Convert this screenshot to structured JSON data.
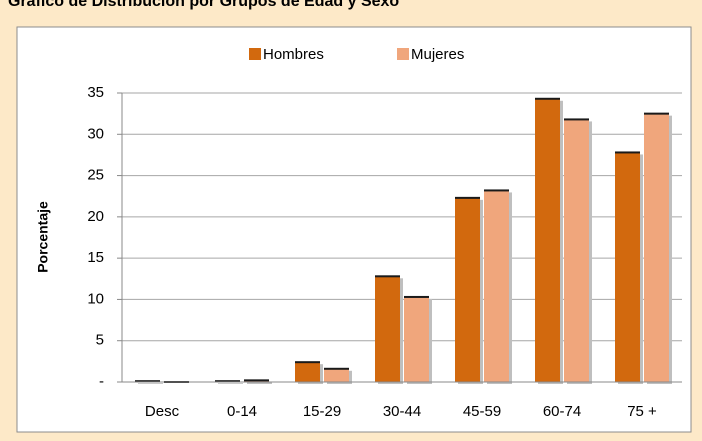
{
  "chart_data": {
    "type": "bar",
    "title": "Gráfico de Distribución por Grupos de Edad y Sexo",
    "y_label": "Porcentaje",
    "categories": [
      "Desc",
      "0-14",
      "15-29",
      "30-44",
      "45-59",
      "60-74",
      "75 +"
    ],
    "series": [
      {
        "name": "Hombres",
        "color": "#d2690e",
        "values": [
          0.1,
          0.1,
          2.4,
          12.8,
          22.3,
          34.3,
          27.8
        ]
      },
      {
        "name": "Mujeres",
        "color": "#f0a67c",
        "values": [
          0,
          0.2,
          1.6,
          10.3,
          23.2,
          31.8,
          32.5
        ]
      }
    ],
    "ylim": [
      0,
      35
    ],
    "yticks": [
      {
        "value": 0,
        "label": "-"
      },
      5,
      10,
      15,
      20,
      25,
      30,
      35
    ],
    "grid": true,
    "legend": "top"
  }
}
